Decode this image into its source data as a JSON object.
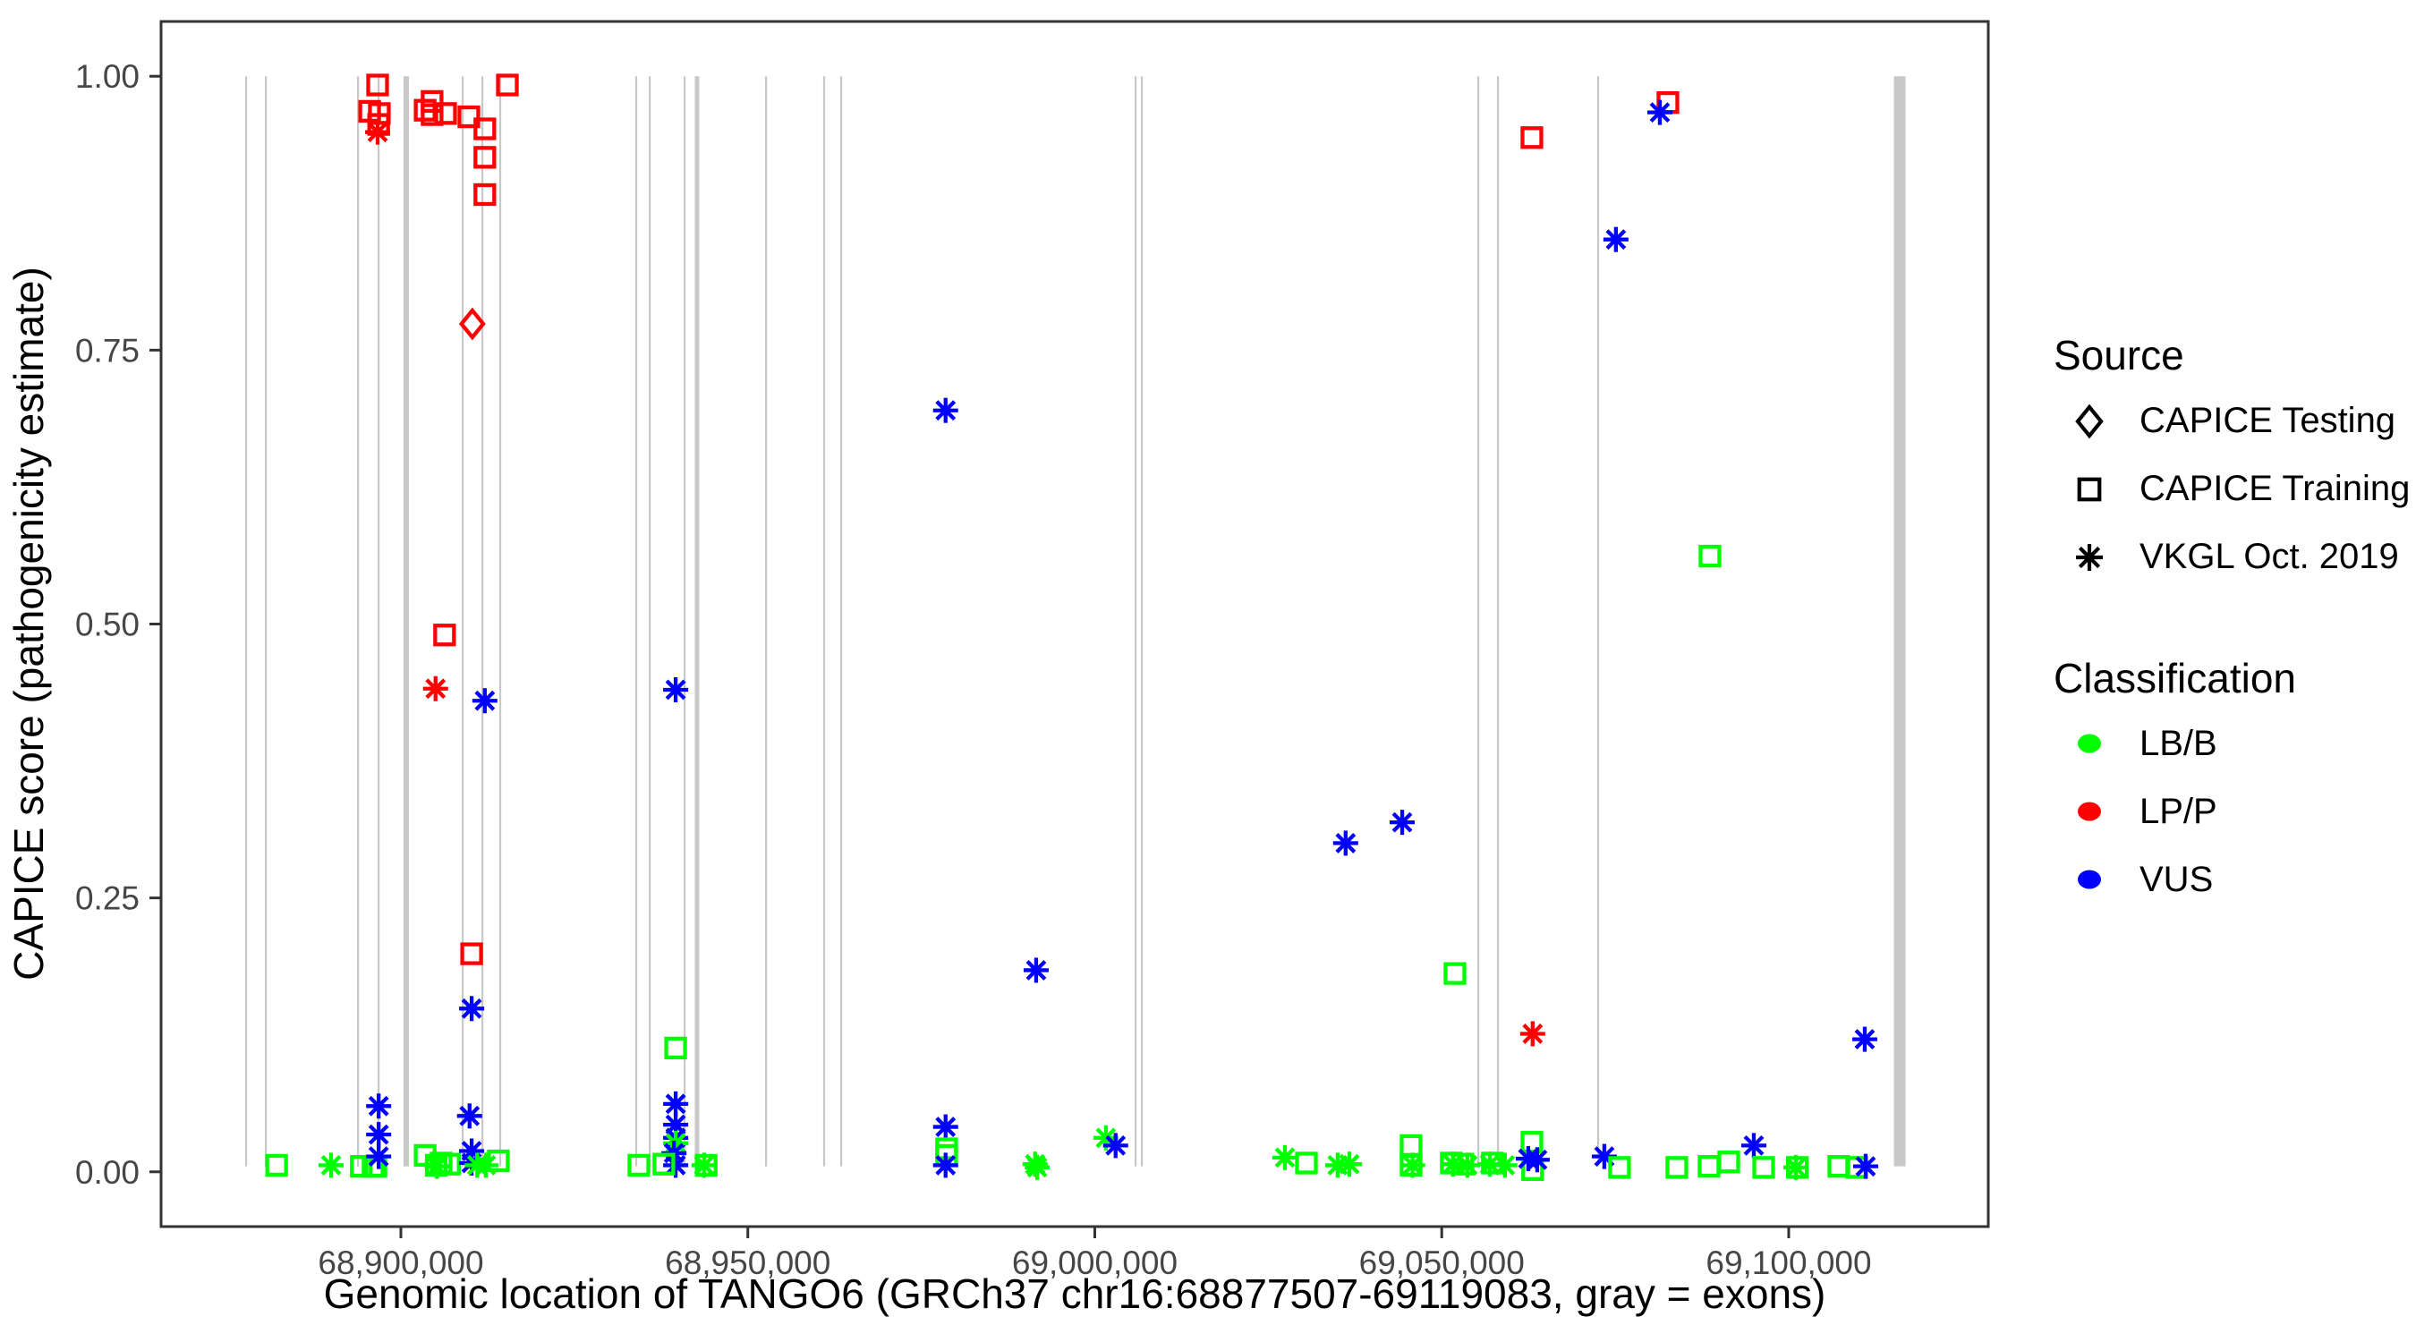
{
  "chart_data": {
    "type": "scatter",
    "title": "",
    "xlabel": "Genomic location of TANGO6 (GRCh37 chr16:68877507-69119083, gray = exons)",
    "ylabel": "CAPICE score (pathogenicity estimate)",
    "x_ticks": [
      {
        "value": 68900000,
        "label": "68,900,000"
      },
      {
        "value": 68950000,
        "label": "68,950,000"
      },
      {
        "value": 69000000,
        "label": "69,000,000"
      },
      {
        "value": 69050000,
        "label": "69,050,000"
      },
      {
        "value": 69100000,
        "label": "69,100,000"
      }
    ],
    "y_ticks": [
      {
        "value": 0.0,
        "label": "0.00"
      },
      {
        "value": 0.25,
        "label": "0.25"
      },
      {
        "value": 0.5,
        "label": "0.50"
      },
      {
        "value": 0.75,
        "label": "0.75"
      },
      {
        "value": 1.0,
        "label": "1.00"
      }
    ],
    "x_domain": [
      68865443,
      69128760
    ],
    "y_domain": [
      -0.05,
      1.05
    ],
    "grid": false,
    "gene": {
      "name": "TANGO6",
      "assembly": "GRCh37",
      "chrom": "chr16",
      "start": 68877507,
      "end": 69119083
    },
    "exon_note": "gray = exons",
    "exon_color": "#C8C8C8",
    "exons": [
      [
        68877560,
        68877820
      ],
      [
        68880400,
        68880660
      ],
      [
        68893680,
        68893940
      ],
      [
        68896650,
        68896910
      ],
      [
        68900390,
        68901160
      ],
      [
        68908770,
        68909030
      ],
      [
        68911610,
        68911870
      ],
      [
        68914180,
        68914440
      ],
      [
        68933780,
        68934040
      ],
      [
        68935720,
        68935980
      ],
      [
        68940750,
        68941010
      ],
      [
        68942360,
        68943000
      ],
      [
        68952480,
        68952740
      ],
      [
        68960860,
        68961120
      ],
      [
        68963310,
        68963570
      ],
      [
        69005740,
        69006000
      ],
      [
        69006640,
        69006900
      ],
      [
        69055130,
        69055390
      ],
      [
        69057960,
        69058220
      ],
      [
        69072400,
        69072660
      ],
      [
        69115160,
        69116840
      ]
    ],
    "series_encoding": {
      "shape_by": "source",
      "color_by": "classification"
    },
    "source_shapes": {
      "test": "diamond",
      "train": "square",
      "vkgl": "asterisk"
    },
    "classification_colors": {
      "LB/B": "#00FF00",
      "LP/P": "#FF0000",
      "VUS": "#0000FF"
    },
    "points_format": [
      "genomic_position",
      "capice_score",
      "source",
      "classification"
    ],
    "points": [
      [
        68896650,
        0.992,
        "train",
        "LP/P"
      ],
      [
        68915350,
        0.992,
        "train",
        "LP/P"
      ],
      [
        68904500,
        0.977,
        "train",
        "LP/P"
      ],
      [
        68895500,
        0.968,
        "train",
        "LP/P"
      ],
      [
        68896900,
        0.966,
        "train",
        "LP/P"
      ],
      [
        68903500,
        0.969,
        "train",
        "LP/P"
      ],
      [
        68904500,
        0.965,
        "train",
        "LP/P"
      ],
      [
        68906450,
        0.966,
        "train",
        "LP/P"
      ],
      [
        68909800,
        0.963,
        "train",
        "LP/P"
      ],
      [
        68896800,
        0.956,
        "train",
        "LP/P"
      ],
      [
        68912100,
        0.952,
        "train",
        "LP/P"
      ],
      [
        68896650,
        0.949,
        "vkgl",
        "LP/P"
      ],
      [
        68912100,
        0.926,
        "train",
        "LP/P"
      ],
      [
        68912100,
        0.892,
        "train",
        "LP/P"
      ],
      [
        68910300,
        0.774,
        "test",
        "LP/P"
      ],
      [
        68906300,
        0.49,
        "train",
        "LP/P"
      ],
      [
        68905000,
        0.441,
        "vkgl",
        "LP/P"
      ],
      [
        68912100,
        0.43,
        "vkgl",
        "VUS"
      ],
      [
        68910200,
        0.199,
        "train",
        "LP/P"
      ],
      [
        68910200,
        0.149,
        "vkgl",
        "VUS"
      ],
      [
        68882100,
        0.006,
        "train",
        "LB/B"
      ],
      [
        68889950,
        0.006,
        "vkgl",
        "LB/B"
      ],
      [
        68894300,
        0.005,
        "train",
        "LB/B"
      ],
      [
        68896000,
        0.005,
        "train",
        "LB/B"
      ],
      [
        68896400,
        0.005,
        "train",
        "LB/B"
      ],
      [
        68896800,
        0.06,
        "vkgl",
        "VUS"
      ],
      [
        68896800,
        0.034,
        "vkgl",
        "VUS"
      ],
      [
        68896800,
        0.014,
        "vkgl",
        "VUS"
      ],
      [
        68903500,
        0.015,
        "train",
        "LB/B"
      ],
      [
        68905100,
        0.006,
        "train",
        "LB/B"
      ],
      [
        68905200,
        0.005,
        "vkgl",
        "LB/B"
      ],
      [
        68905800,
        0.008,
        "train",
        "LB/B"
      ],
      [
        68907000,
        0.007,
        "train",
        "LB/B"
      ],
      [
        68909900,
        0.051,
        "vkgl",
        "VUS"
      ],
      [
        68910200,
        0.019,
        "vkgl",
        "VUS"
      ],
      [
        68910200,
        0.008,
        "vkgl",
        "VUS"
      ],
      [
        68911000,
        0.006,
        "vkgl",
        "LB/B"
      ],
      [
        68912250,
        0.006,
        "vkgl",
        "LB/B"
      ],
      [
        68914050,
        0.01,
        "train",
        "LB/B"
      ],
      [
        68939600,
        0.44,
        "vkgl",
        "VUS"
      ],
      [
        68939600,
        0.113,
        "train",
        "LB/B"
      ],
      [
        68939600,
        0.062,
        "vkgl",
        "VUS"
      ],
      [
        68939600,
        0.043,
        "vkgl",
        "VUS"
      ],
      [
        68939600,
        0.031,
        "vkgl",
        "VUS"
      ],
      [
        68939600,
        0.026,
        "vkgl",
        "LB/B"
      ],
      [
        68939350,
        0.017,
        "vkgl",
        "VUS"
      ],
      [
        68939600,
        0.006,
        "vkgl",
        "VUS"
      ],
      [
        68934300,
        0.006,
        "train",
        "LB/B"
      ],
      [
        68937900,
        0.007,
        "train",
        "LB/B"
      ],
      [
        68943700,
        0.006,
        "vkgl",
        "LB/B"
      ],
      [
        68944000,
        0.006,
        "train",
        "LB/B"
      ],
      [
        68978500,
        0.695,
        "vkgl",
        "VUS"
      ],
      [
        68978500,
        0.041,
        "vkgl",
        "VUS"
      ],
      [
        68978650,
        0.021,
        "train",
        "LB/B"
      ],
      [
        68978650,
        0.015,
        "train",
        "LB/B"
      ],
      [
        68978500,
        0.006,
        "vkgl",
        "VUS"
      ],
      [
        68991400,
        0.007,
        "vkgl",
        "LB/B"
      ],
      [
        68991550,
        0.184,
        "vkgl",
        "VUS"
      ],
      [
        68991700,
        0.004,
        "vkgl",
        "LB/B"
      ],
      [
        69001600,
        0.031,
        "vkgl",
        "LB/B"
      ],
      [
        69003000,
        0.024,
        "vkgl",
        "VUS"
      ],
      [
        69036150,
        0.3,
        "vkgl",
        "VUS"
      ],
      [
        69044300,
        0.319,
        "vkgl",
        "VUS"
      ],
      [
        69062990,
        0.944,
        "train",
        "LP/P"
      ],
      [
        69082590,
        0.976,
        "train",
        "LP/P"
      ],
      [
        69081430,
        0.967,
        "vkgl",
        "VUS"
      ],
      [
        69075100,
        0.851,
        "vkgl",
        "VUS"
      ],
      [
        69088650,
        0.562,
        "train",
        "LB/B"
      ],
      [
        69051900,
        0.181,
        "train",
        "LB/B"
      ],
      [
        69063100,
        0.126,
        "vkgl",
        "LP/P"
      ],
      [
        69027400,
        0.013,
        "vkgl",
        "LB/B"
      ],
      [
        69030500,
        0.008,
        "train",
        "LB/B"
      ],
      [
        69035000,
        0.006,
        "vkgl",
        "LB/B"
      ],
      [
        69036700,
        0.007,
        "vkgl",
        "LB/B"
      ],
      [
        69045580,
        0.024,
        "train",
        "LB/B"
      ],
      [
        69045580,
        0.006,
        "train",
        "LB/B"
      ],
      [
        69045800,
        0.006,
        "vkgl",
        "LB/B"
      ],
      [
        69051380,
        0.008,
        "train",
        "LB/B"
      ],
      [
        69051600,
        0.007,
        "vkgl",
        "LB/B"
      ],
      [
        69053050,
        0.007,
        "train",
        "LB/B"
      ],
      [
        69053700,
        0.006,
        "vkgl",
        "LB/B"
      ],
      [
        69056930,
        0.007,
        "vkgl",
        "LB/B"
      ],
      [
        69057300,
        0.008,
        "train",
        "LB/B"
      ],
      [
        69059100,
        0.006,
        "vkgl",
        "LB/B"
      ],
      [
        69062990,
        0.027,
        "train",
        "LB/B"
      ],
      [
        69063100,
        0.002,
        "train",
        "LB/B"
      ],
      [
        69062470,
        0.012,
        "vkgl",
        "VUS"
      ],
      [
        69063760,
        0.011,
        "vkgl",
        "VUS"
      ],
      [
        69073430,
        0.014,
        "vkgl",
        "VUS"
      ],
      [
        69075620,
        0.004,
        "train",
        "LB/B"
      ],
      [
        69083880,
        0.004,
        "train",
        "LB/B"
      ],
      [
        69088520,
        0.005,
        "train",
        "LB/B"
      ],
      [
        69091360,
        0.009,
        "train",
        "LB/B"
      ],
      [
        69094970,
        0.024,
        "vkgl",
        "VUS"
      ],
      [
        69096390,
        0.004,
        "train",
        "LB/B"
      ],
      [
        69101030,
        0.004,
        "vkgl",
        "LB/B"
      ],
      [
        69101250,
        0.004,
        "train",
        "LB/B"
      ],
      [
        69107220,
        0.005,
        "train",
        "LB/B"
      ],
      [
        69109800,
        0.004,
        "train",
        "LB/B"
      ],
      [
        69111090,
        0.005,
        "vkgl",
        "VUS"
      ],
      [
        69110960,
        0.121,
        "vkgl",
        "VUS"
      ]
    ]
  },
  "legend": {
    "source": {
      "title": "Source",
      "items": [
        {
          "label": "CAPICE Testing",
          "shape": "diamond",
          "icon": "diamond-icon"
        },
        {
          "label": "CAPICE Training",
          "shape": "square",
          "icon": "square-icon"
        },
        {
          "label": "VKGL Oct. 2019",
          "shape": "asterisk",
          "icon": "asterisk-icon"
        }
      ]
    },
    "classification": {
      "title": "Classification",
      "items": [
        {
          "label": "LB/B",
          "color": "#00FF00"
        },
        {
          "label": "LP/P",
          "color": "#FF0000"
        },
        {
          "label": "VUS",
          "color": "#0000FF"
        }
      ]
    }
  }
}
